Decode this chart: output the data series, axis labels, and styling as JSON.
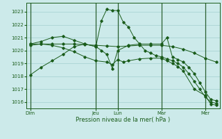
{
  "background_color": "#cceaea",
  "grid_color": "#aad4d4",
  "line_color": "#1a5c1a",
  "ylim": [
    1015.5,
    1023.7
  ],
  "yticks": [
    1016,
    1017,
    1018,
    1019,
    1020,
    1021,
    1022,
    1023
  ],
  "xlabel": "Pression niveau de la mer( hPa )",
  "day_labels": [
    "Dim",
    "Jeu",
    "Lun",
    "Mar",
    "Mer"
  ],
  "day_positions": [
    0,
    36,
    48,
    72,
    96
  ],
  "vline_positions": [
    0,
    36,
    48,
    72,
    96
  ],
  "series1_x": [
    0,
    6,
    12,
    18,
    24,
    30,
    36,
    39,
    42,
    45,
    48,
    51,
    54,
    57,
    60,
    63,
    66,
    69,
    72,
    75,
    78,
    81,
    84,
    87,
    90,
    93,
    96,
    99,
    102
  ],
  "series1_y": [
    1018.1,
    1018.7,
    1019.2,
    1019.7,
    1020.3,
    1020.5,
    1020.3,
    1022.3,
    1023.2,
    1023.1,
    1023.1,
    1022.2,
    1021.8,
    1021.0,
    1020.5,
    1020.0,
    1019.8,
    1019.6,
    1019.5,
    1019.35,
    1019.2,
    1019.0,
    1018.7,
    1018.2,
    1017.6,
    1017.0,
    1016.4,
    1016.0,
    1015.9
  ],
  "series2_x": [
    0,
    6,
    12,
    18,
    24,
    30,
    36,
    42,
    48,
    54,
    60,
    66,
    72,
    78,
    84,
    90,
    96,
    102
  ],
  "series2_y": [
    1020.5,
    1020.5,
    1020.5,
    1020.5,
    1020.5,
    1020.45,
    1020.4,
    1020.35,
    1020.3,
    1020.35,
    1020.4,
    1020.4,
    1020.4,
    1020.3,
    1020.1,
    1019.8,
    1019.4,
    1019.1
  ],
  "series3_x": [
    0,
    6,
    12,
    18,
    24,
    30,
    36,
    39,
    42,
    45,
    48,
    54,
    60,
    66,
    72,
    75,
    78,
    81,
    84,
    87,
    90,
    93,
    96,
    99,
    102
  ],
  "series3_y": [
    1020.5,
    1020.7,
    1021.0,
    1021.1,
    1020.8,
    1020.5,
    1020.3,
    1020.0,
    1019.7,
    1018.6,
    1020.0,
    1020.4,
    1020.5,
    1020.5,
    1020.5,
    1021.0,
    1019.5,
    1019.3,
    1019.1,
    1018.7,
    1018.2,
    1017.5,
    1016.8,
    1016.2,
    1016.1
  ],
  "series4_x": [
    0,
    6,
    12,
    18,
    24,
    30,
    36,
    42,
    45,
    48,
    51,
    54,
    60,
    66,
    72,
    75,
    78,
    81,
    84,
    90,
    96,
    99,
    102
  ],
  "series4_y": [
    1020.4,
    1020.5,
    1020.4,
    1020.2,
    1019.9,
    1019.5,
    1019.2,
    1019.1,
    1018.9,
    1019.3,
    1019.1,
    1019.2,
    1019.35,
    1019.4,
    1019.4,
    1019.2,
    1019.0,
    1018.75,
    1018.4,
    1017.0,
    1016.5,
    1015.85,
    1015.75
  ]
}
